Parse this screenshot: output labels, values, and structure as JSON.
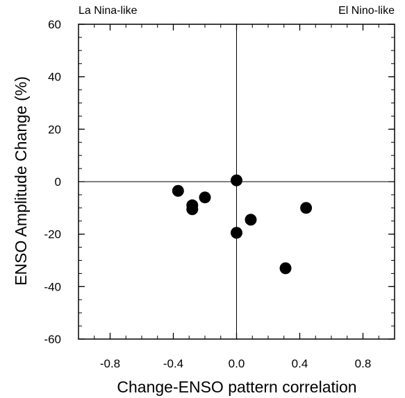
{
  "chart_data": {
    "type": "scatter",
    "title": "",
    "xlabel": "Change-ENSO pattern correlation",
    "ylabel": "ENSO Amplitude Change (%)",
    "xlim": [
      -1.0,
      1.0
    ],
    "ylim": [
      -60,
      60
    ],
    "xticks": [
      -0.8,
      -0.4,
      0.0,
      0.4,
      0.8
    ],
    "xtick_labels": [
      "-0.8",
      "-0.4",
      "0.0",
      "0.4",
      "0.8"
    ],
    "yticks": [
      -60,
      -40,
      -20,
      0,
      20,
      40,
      60
    ],
    "ytick_labels": [
      "-60",
      "-40",
      "-20",
      "0",
      "20",
      "40",
      "60"
    ],
    "annotations": {
      "top_left": "La Nina-like",
      "top_right": "El Nino-like"
    },
    "grid": false,
    "reference_lines": {
      "x": 0,
      "y": 0
    },
    "marker_color": "#000000",
    "points": [
      {
        "x": -0.37,
        "y": -3.5
      },
      {
        "x": -0.28,
        "y": -9.0
      },
      {
        "x": -0.28,
        "y": -10.5
      },
      {
        "x": -0.2,
        "y": -6.0
      },
      {
        "x": 0.0,
        "y": 0.5
      },
      {
        "x": 0.0,
        "y": -19.5
      },
      {
        "x": 0.09,
        "y": -14.5
      },
      {
        "x": 0.31,
        "y": -33.0
      },
      {
        "x": 0.44,
        "y": -10.0
      }
    ]
  }
}
